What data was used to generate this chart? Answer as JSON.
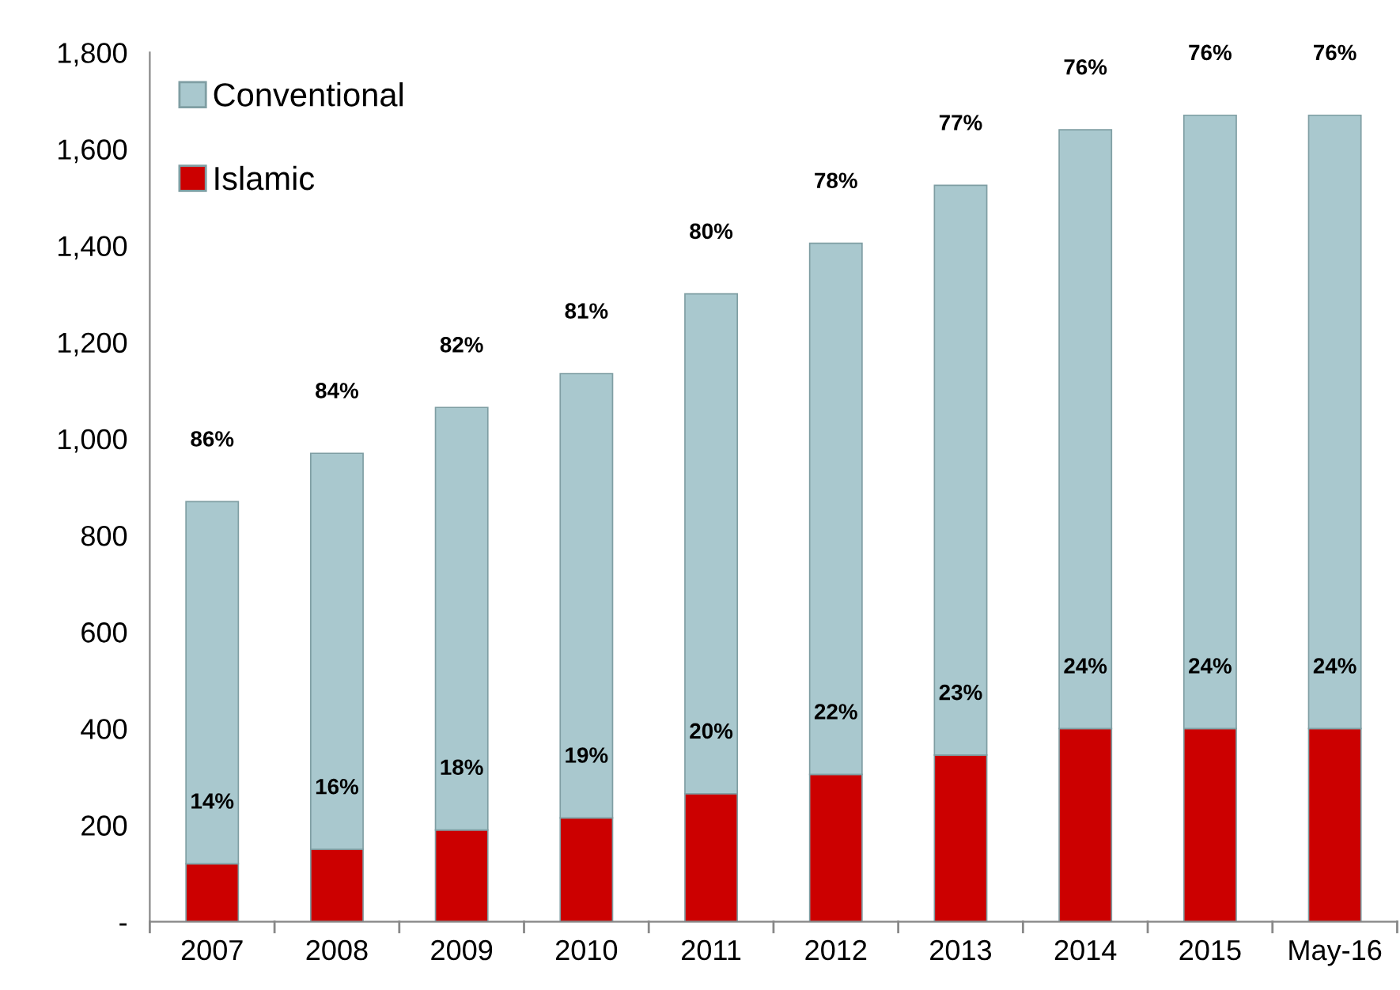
{
  "chart_data": {
    "type": "bar",
    "stacked": true,
    "categories": [
      "2007",
      "2008",
      "2009",
      "2010",
      "2011",
      "2012",
      "2013",
      "2014",
      "2015",
      "May-16"
    ],
    "series": [
      {
        "name": "Islamic",
        "color": "#cc0000",
        "values": [
          120,
          150,
          190,
          215,
          265,
          305,
          345,
          400,
          400,
          400
        ]
      },
      {
        "name": "Conventional",
        "color": "#a9c8ce",
        "values": [
          750,
          820,
          875,
          920,
          1035,
          1100,
          1180,
          1240,
          1270,
          1270
        ]
      }
    ],
    "annotations": [
      {
        "text": "14%",
        "x": "2007",
        "y": 120
      },
      {
        "text": "16%",
        "x": "2008",
        "y": 150
      },
      {
        "text": "18%",
        "x": "2009",
        "y": 190
      },
      {
        "text": "19%",
        "x": "2010",
        "y": 215
      },
      {
        "text": "20%",
        "x": "2011",
        "y": 265
      },
      {
        "text": "22%",
        "x": "2012",
        "y": 305
      },
      {
        "text": "23%",
        "x": "2013",
        "y": 345
      },
      {
        "text": "24%",
        "x": "2014",
        "y": 400
      },
      {
        "text": "24%",
        "x": "2015",
        "y": 400
      },
      {
        "text": "24%",
        "x": "May-16",
        "y": 400
      },
      {
        "text": "86%",
        "x": "2007",
        "y": 870
      },
      {
        "text": "84%",
        "x": "2008",
        "y": 970
      },
      {
        "text": "82%",
        "x": "2009",
        "y": 1065
      },
      {
        "text": "81%",
        "x": "2010",
        "y": 1135
      },
      {
        "text": "80%",
        "x": "2011",
        "y": 1300
      },
      {
        "text": "78%",
        "x": "2012",
        "y": 1405
      },
      {
        "text": "77%",
        "x": "2013",
        "y": 1525
      },
      {
        "text": "76%",
        "x": "2014",
        "y": 1640
      },
      {
        "text": "76%",
        "x": "2015",
        "y": 1670
      },
      {
        "text": "76%",
        "x": "May-16",
        "y": 1670
      }
    ],
    "ylim": [
      0,
      1800
    ],
    "yticks": [
      {
        "value": 0,
        "label": "-"
      },
      {
        "value": 200,
        "label": "200"
      },
      {
        "value": 400,
        "label": "400"
      },
      {
        "value": 600,
        "label": "600"
      },
      {
        "value": 800,
        "label": "800"
      },
      {
        "value": 1000,
        "label": "1,000"
      },
      {
        "value": 1200,
        "label": "1,200"
      },
      {
        "value": 1400,
        "label": "1,400"
      },
      {
        "value": 1600,
        "label": "1,600"
      },
      {
        "value": 1800,
        "label": "1,800"
      }
    ],
    "legend": "top left",
    "grid": false
  }
}
